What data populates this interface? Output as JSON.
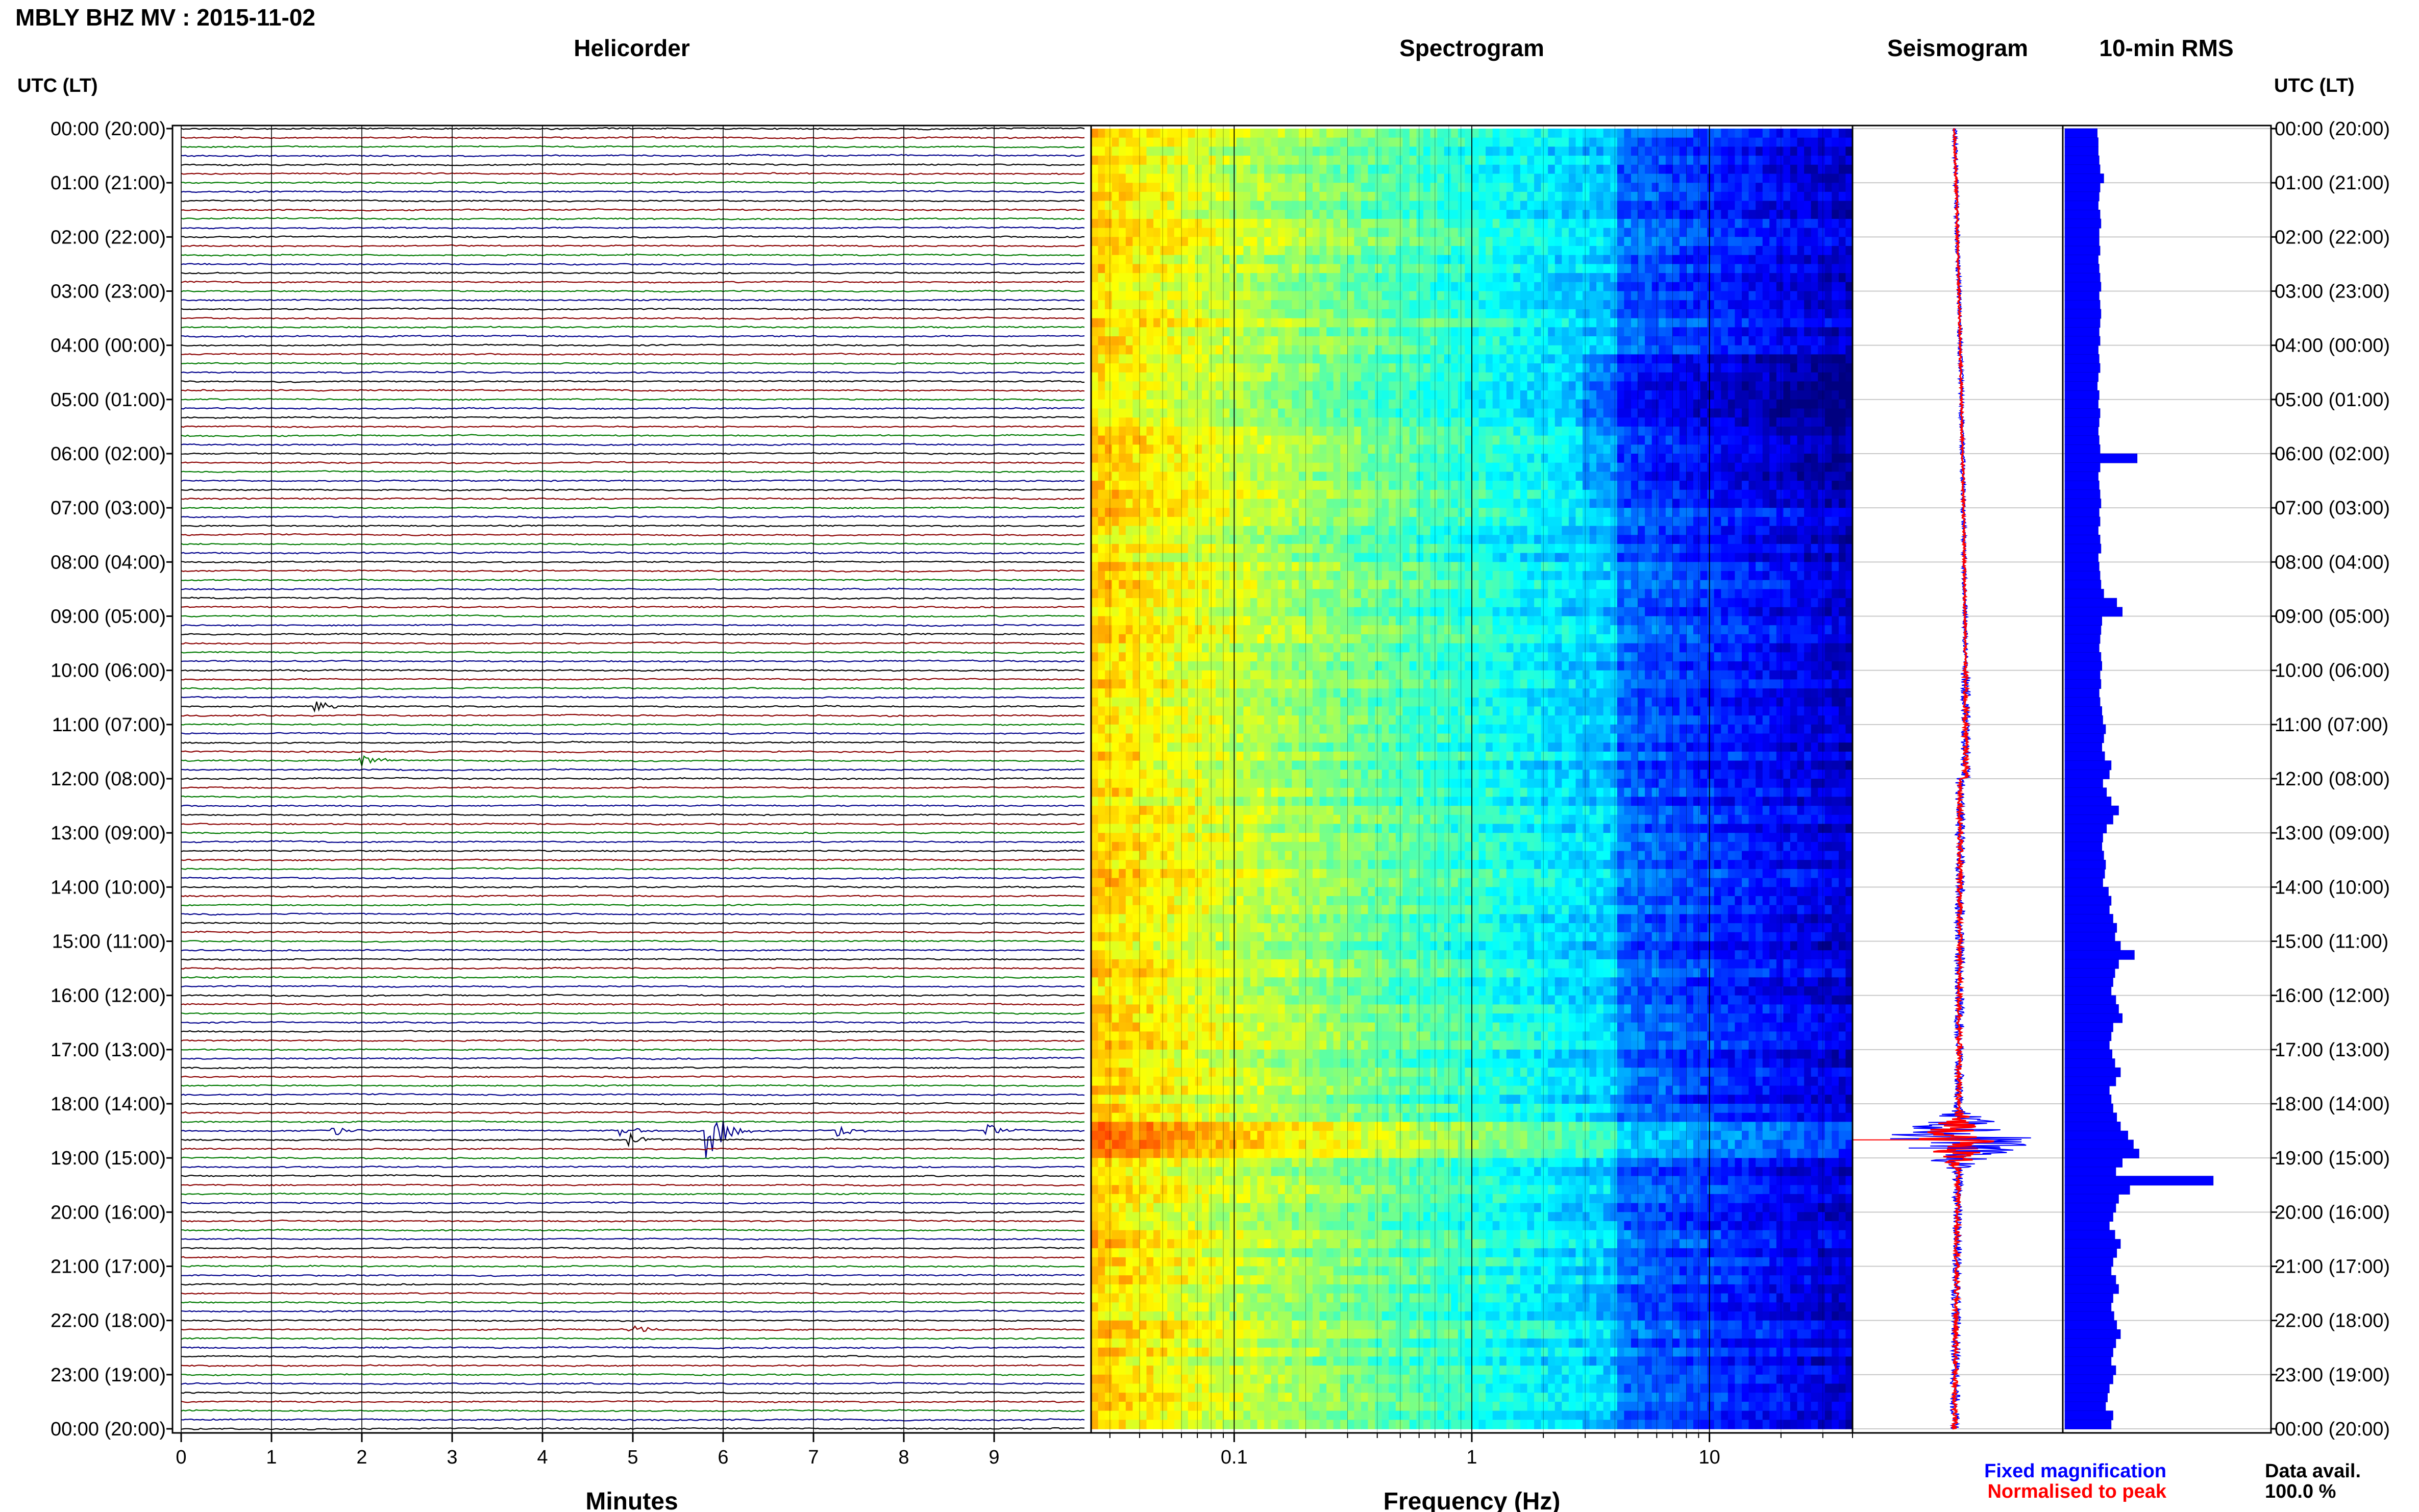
{
  "title": "MBLY BHZ MV : 2015-11-02",
  "panels": {
    "helicorder": {
      "title": "Helicorder",
      "xlabel": "Minutes"
    },
    "spectrogram": {
      "title": "Spectrogram",
      "xlabel": "Frequency (Hz)"
    },
    "seismogram": {
      "title": "Seismogram"
    },
    "rms": {
      "title": "10-min RMS"
    }
  },
  "time_axis": {
    "left_label": "UTC (LT)",
    "right_label": "UTC (LT)",
    "ticks": [
      "00:00 (20:00)",
      "01:00 (21:00)",
      "02:00 (22:00)",
      "03:00 (23:00)",
      "04:00 (00:00)",
      "05:00 (01:00)",
      "06:00 (02:00)",
      "07:00 (03:00)",
      "08:00 (04:00)",
      "09:00 (05:00)",
      "10:00 (06:00)",
      "11:00 (07:00)",
      "12:00 (08:00)",
      "13:00 (09:00)",
      "14:00 (10:00)",
      "15:00 (11:00)",
      "16:00 (12:00)",
      "17:00 (13:00)",
      "18:00 (14:00)",
      "19:00 (15:00)",
      "20:00 (16:00)",
      "21:00 (17:00)",
      "22:00 (18:00)",
      "23:00 (19:00)",
      "00:00 (20:00)"
    ]
  },
  "legend": {
    "fixed": "Fixed magnification",
    "normalised": "Normalised to peak"
  },
  "availability": {
    "label": "Data avail.",
    "value": "100.0 %"
  },
  "colors": {
    "trace_black": "#000000",
    "trace_red": "#8b0000",
    "trace_green": "#007a00",
    "trace_blue": "#00008b",
    "fixed": "#0000ff",
    "normalised": "#ff0000",
    "rms_bar": "#0000ff"
  },
  "chart_data": [
    {
      "type": "line",
      "panel": "helicorder",
      "x_unit": "minutes",
      "xlim": [
        0,
        10
      ],
      "x_ticks": [
        "0",
        "1",
        "2",
        "3",
        "4",
        "5",
        "6",
        "7",
        "8",
        "9"
      ],
      "rows": 144,
      "color_cycle": [
        "black",
        "red",
        "green",
        "blue"
      ],
      "events": [
        {
          "time": "10:40",
          "minute": 1.5
        },
        {
          "time": "11:40",
          "minute": 2.0
        },
        {
          "time": "18:30",
          "minute": 1.7
        },
        {
          "time": "18:30",
          "minute": 4.9
        },
        {
          "time": "18:30",
          "minute": 5.85
        },
        {
          "time": "18:30",
          "minute": 7.3
        },
        {
          "time": "18:30",
          "minute": 8.95
        },
        {
          "time": "18:40",
          "minute": 5.0
        },
        {
          "time": "22:10",
          "minute": 5.0
        }
      ]
    },
    {
      "type": "heatmap",
      "panel": "spectrogram",
      "x_unit": "Hz",
      "x_scale": "log",
      "xlim": [
        0.025,
        40
      ],
      "x_ticks": [
        "0.1",
        "1",
        "10"
      ],
      "colormap": "jet"
    },
    {
      "type": "line",
      "panel": "seismogram",
      "series": [
        {
          "name": "Fixed magnification",
          "color": "#0000ff"
        },
        {
          "name": "Normalised to peak",
          "color": "#ff0000"
        }
      ],
      "peak_time": "18:40"
    },
    {
      "type": "bar",
      "panel": "rms",
      "orientation": "horizontal",
      "bin_minutes": 10,
      "values": [
        0.35,
        0.36,
        0.36,
        0.37,
        0.38,
        0.42,
        0.38,
        0.37,
        0.36,
        0.38,
        0.39,
        0.37,
        0.37,
        0.38,
        0.36,
        0.37,
        0.38,
        0.39,
        0.37,
        0.38,
        0.39,
        0.38,
        0.37,
        0.38,
        0.36,
        0.37,
        0.38,
        0.36,
        0.35,
        0.37,
        0.36,
        0.38,
        0.37,
        0.36,
        0.37,
        0.38,
        0.78,
        0.38,
        0.36,
        0.37,
        0.38,
        0.39,
        0.37,
        0.38,
        0.36,
        0.38,
        0.39,
        0.36,
        0.37,
        0.38,
        0.39,
        0.42,
        0.56,
        0.62,
        0.4,
        0.39,
        0.38,
        0.37,
        0.39,
        0.4,
        0.38,
        0.39,
        0.37,
        0.38,
        0.4,
        0.41,
        0.44,
        0.42,
        0.4,
        0.43,
        0.5,
        0.48,
        0.41,
        0.45,
        0.5,
        0.58,
        0.52,
        0.45,
        0.41,
        0.4,
        0.42,
        0.44,
        0.43,
        0.41,
        0.47,
        0.5,
        0.48,
        0.52,
        0.56,
        0.54,
        0.6,
        0.75,
        0.58,
        0.54,
        0.52,
        0.5,
        0.55,
        0.58,
        0.62,
        0.52,
        0.5,
        0.48,
        0.51,
        0.54,
        0.6,
        0.55,
        0.48,
        0.5,
        0.52,
        0.56,
        0.6,
        0.68,
        0.74,
        0.8,
        0.62,
        0.55,
        1.6,
        0.7,
        0.58,
        0.55,
        0.52,
        0.48,
        0.54,
        0.6,
        0.56,
        0.52,
        0.5,
        0.55,
        0.58,
        0.52,
        0.5,
        0.53,
        0.56,
        0.6,
        0.55,
        0.52,
        0.5,
        0.55,
        0.52,
        0.48,
        0.46,
        0.44,
        0.52,
        0.5
      ],
      "xlim": [
        0,
        2.2
      ]
    }
  ]
}
